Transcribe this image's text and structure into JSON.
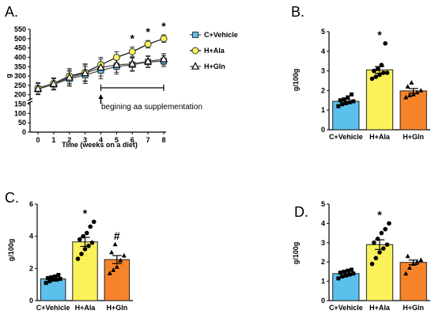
{
  "colors": {
    "c_vehicle": "#5bc0eb",
    "h_ala": "#fbf25a",
    "h_gln": "#f7842a",
    "line_vehicle": "#4d4d4d",
    "line_ala": "#1a1a1a",
    "line_gln": "#4d4d4d"
  },
  "chart_data": [
    {
      "panel": "A.",
      "type": "line",
      "title": "",
      "xlabel": "Time (weeks on a diet)",
      "ylabel": "g",
      "x": [
        0,
        1,
        2,
        3,
        4,
        5,
        6,
        7,
        8
      ],
      "xlim": [
        0,
        8
      ],
      "ylim": [
        0,
        550
      ],
      "y_ticks": [
        0,
        50,
        100,
        150,
        200,
        250,
        300,
        350,
        400,
        450,
        500,
        550
      ],
      "y_axis_break": true,
      "series": [
        {
          "name": "C+Vehicle",
          "marker": "square",
          "values": [
            230,
            255,
            285,
            305,
            330,
            350,
            360,
            375,
            380
          ],
          "error": [
            30,
            30,
            40,
            45,
            45,
            40,
            35,
            30,
            30
          ]
        },
        {
          "name": "H+Ala",
          "marker": "circle",
          "values": [
            235,
            260,
            300,
            320,
            360,
            400,
            430,
            470,
            500
          ],
          "error": [
            30,
            30,
            40,
            45,
            40,
            30,
            25,
            20,
            20
          ]
        },
        {
          "name": "H+Gln",
          "marker": "triangle",
          "values": [
            232,
            258,
            292,
            315,
            345,
            360,
            365,
            378,
            390
          ],
          "error": [
            30,
            30,
            40,
            45,
            45,
            40,
            35,
            30,
            30
          ]
        }
      ],
      "significance": [
        {
          "x": 6,
          "mark": "*"
        },
        {
          "x": 7,
          "mark": "*"
        },
        {
          "x": 8,
          "mark": "*"
        }
      ],
      "annotation": {
        "text": "begining aa supplementation",
        "from_x": 4,
        "to_x": 8
      },
      "legend_position": "right"
    },
    {
      "panel": "B.",
      "type": "bar",
      "ylabel": "g/100g",
      "ylim": [
        0,
        5
      ],
      "y_ticks": [
        0,
        1,
        2,
        3,
        4,
        5
      ],
      "categories": [
        "C+Vehicle",
        "H+Ala",
        "H+Gln"
      ],
      "values": [
        1.45,
        3.05,
        1.98
      ],
      "error": [
        0.1,
        0.17,
        0.12
      ],
      "points": [
        [
          1.2,
          1.3,
          1.35,
          1.4,
          1.45,
          1.5,
          1.55,
          1.65,
          1.8
        ],
        [
          2.6,
          2.7,
          2.8,
          2.9,
          2.9,
          3.0,
          3.1,
          3.3,
          4.4
        ],
        [
          1.65,
          1.75,
          1.8,
          1.9,
          2.0,
          2.2,
          2.4
        ]
      ],
      "significance": [
        "",
        "*",
        ""
      ]
    },
    {
      "panel": "C.",
      "type": "bar",
      "ylabel": "g/100g",
      "ylim": [
        0,
        6
      ],
      "y_ticks": [
        0,
        2,
        4,
        6
      ],
      "categories": [
        "C+Vehicle",
        "H+Ala",
        "H+Gln"
      ],
      "values": [
        1.35,
        3.65,
        2.55
      ],
      "error": [
        0.08,
        0.28,
        0.25
      ],
      "points": [
        [
          1.1,
          1.2,
          1.3,
          1.3,
          1.35,
          1.4,
          1.45,
          1.5,
          1.6
        ],
        [
          2.6,
          2.9,
          3.2,
          3.4,
          3.6,
          3.8,
          4.0,
          4.2,
          4.6,
          4.9
        ],
        [
          1.7,
          1.9,
          2.1,
          2.5,
          2.8,
          3.0,
          3.5
        ]
      ],
      "significance": [
        "",
        "*",
        "#"
      ]
    },
    {
      "panel": "D.",
      "type": "bar",
      "ylabel": "g/100g",
      "ylim": [
        0,
        5
      ],
      "y_ticks": [
        0,
        1,
        2,
        3,
        4,
        5
      ],
      "categories": [
        "C+Vehicle",
        "H+Ala",
        "H+Gln"
      ],
      "values": [
        1.4,
        2.9,
        1.98
      ],
      "error": [
        0.07,
        0.25,
        0.12
      ],
      "points": [
        [
          1.15,
          1.25,
          1.3,
          1.35,
          1.4,
          1.45,
          1.5,
          1.55,
          1.6
        ],
        [
          1.9,
          2.2,
          2.5,
          2.7,
          2.9,
          3.0,
          3.2,
          3.5,
          3.7,
          4.0
        ],
        [
          1.4,
          1.7,
          1.9,
          2.0,
          2.1,
          2.3
        ]
      ],
      "significance": [
        "",
        "*",
        ""
      ]
    }
  ]
}
